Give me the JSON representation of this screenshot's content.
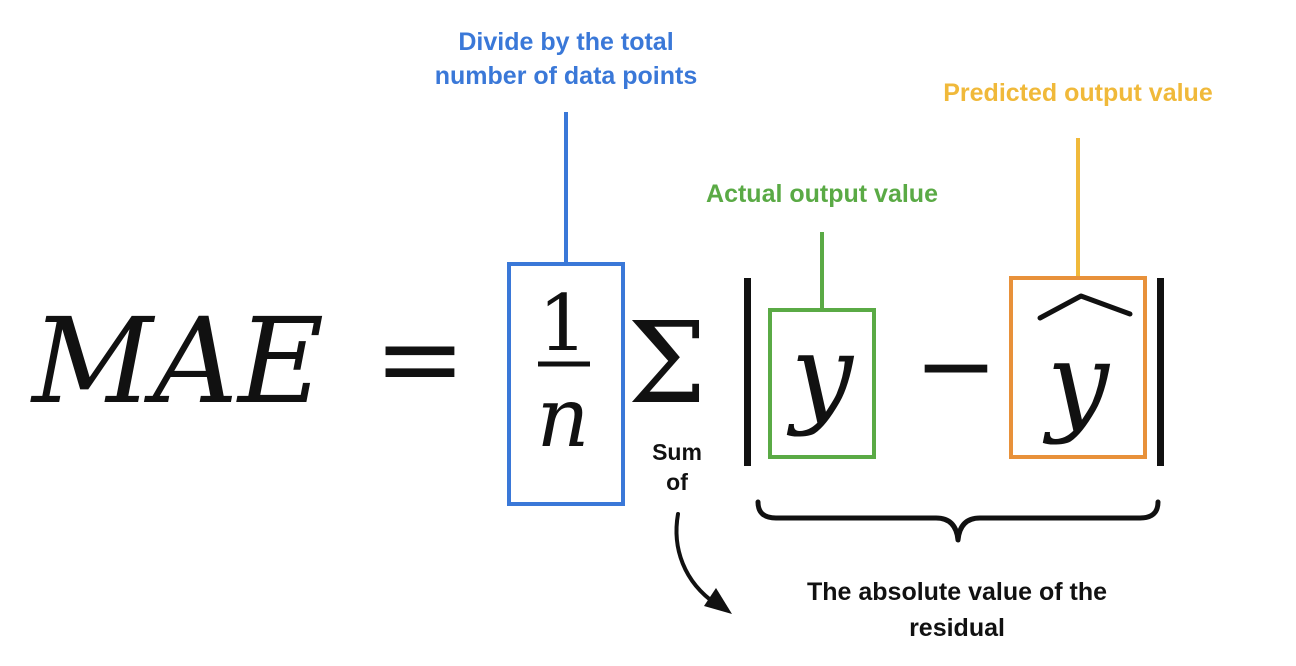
{
  "formula": {
    "lhs": "MAE",
    "equals": "=",
    "numerator": "1",
    "denominator": "n",
    "sum_symbol": "Σ",
    "actual": "y",
    "minus": "−",
    "predicted": "y"
  },
  "annotations": {
    "divide_line1": "Divide by the total",
    "divide_line2": "number of data points",
    "predicted_label": "Predicted output value",
    "actual_label": "Actual output value",
    "sum_line1": "Sum",
    "sum_line2": "of",
    "residual_line1": "The absolute value of the",
    "residual_line2": "residual"
  },
  "colors": {
    "divide": "#3a78d8",
    "actual": "#5aaa45",
    "predicted": "#f0b93a",
    "predicted_box": "#e8913a",
    "ink": "#111111"
  }
}
